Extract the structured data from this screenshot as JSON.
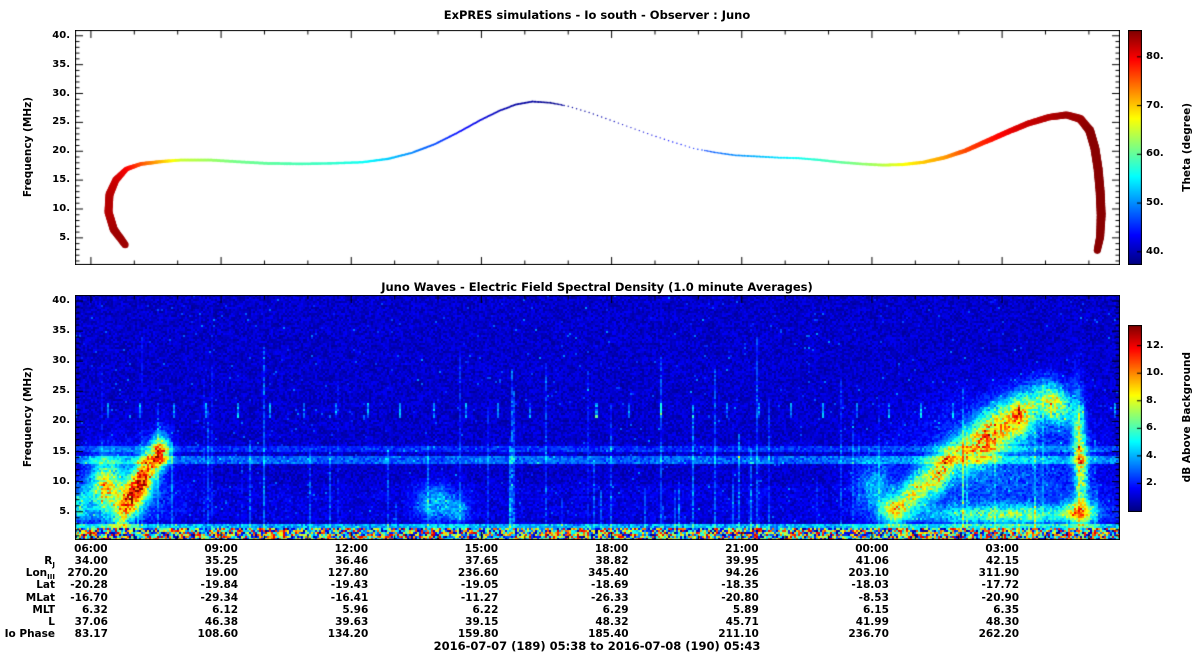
{
  "page": {
    "caption": "2016-07-07 (189) 05:38 to 2016-07-08 (190) 05:43"
  },
  "chart_data": [
    {
      "type": "line",
      "title": "ExPRES simulations - Io south - Observer : Juno",
      "ylabel": "Frequency (MHz)",
      "ylim": [
        0.3,
        41
      ],
      "yticks": [
        5,
        10,
        15,
        20,
        25,
        30,
        35,
        40
      ],
      "colorbar": {
        "label": "Theta (degree)",
        "ticks": [
          40,
          50,
          60,
          70,
          80
        ],
        "range": [
          37.5,
          85.5
        ]
      },
      "points": [
        [
          0.048,
          3.8,
          84,
          7
        ],
        [
          0.037,
          6.5,
          84,
          8
        ],
        [
          0.032,
          9.5,
          83,
          8
        ],
        [
          0.033,
          12.5,
          83,
          8
        ],
        [
          0.039,
          15.0,
          82,
          7
        ],
        [
          0.049,
          16.9,
          80,
          5
        ],
        [
          0.063,
          17.8,
          76,
          4
        ],
        [
          0.082,
          18.2,
          71,
          3.5
        ],
        [
          0.102,
          18.5,
          65,
          3
        ],
        [
          0.128,
          18.5,
          63,
          3
        ],
        [
          0.155,
          18.2,
          61,
          3
        ],
        [
          0.185,
          17.9,
          60,
          3
        ],
        [
          0.215,
          17.8,
          59,
          2.8
        ],
        [
          0.245,
          17.9,
          58,
          2.6
        ],
        [
          0.275,
          18.1,
          56,
          2.5
        ],
        [
          0.3,
          18.7,
          53,
          2.4
        ],
        [
          0.322,
          19.7,
          50,
          2.2
        ],
        [
          0.344,
          21.2,
          47,
          2.1
        ],
        [
          0.366,
          23.2,
          44,
          2
        ],
        [
          0.388,
          25.4,
          42,
          2
        ],
        [
          0.406,
          27.0,
          40,
          2
        ],
        [
          0.422,
          28.1,
          39,
          2
        ],
        [
          0.438,
          28.6,
          39,
          2
        ],
        [
          0.455,
          28.4,
          38,
          1.8
        ],
        [
          0.472,
          27.8,
          39,
          1.4
        ],
        [
          0.492,
          26.7,
          39,
          1.2
        ],
        [
          0.512,
          25.4,
          40,
          1.2
        ],
        [
          0.532,
          24.1,
          41,
          1.2
        ],
        [
          0.552,
          22.8,
          42,
          1.2
        ],
        [
          0.572,
          21.6,
          44,
          1.3
        ],
        [
          0.592,
          20.5,
          45,
          1.4
        ],
        [
          0.612,
          19.8,
          48,
          1.6
        ],
        [
          0.632,
          19.3,
          50,
          1.8
        ],
        [
          0.652,
          19.1,
          52,
          2
        ],
        [
          0.672,
          18.9,
          54,
          2
        ],
        [
          0.692,
          18.8,
          56,
          2.2
        ],
        [
          0.712,
          18.5,
          58,
          2.4
        ],
        [
          0.732,
          18.1,
          60,
          2.6
        ],
        [
          0.752,
          17.8,
          62,
          2.8
        ],
        [
          0.772,
          17.6,
          64,
          3
        ],
        [
          0.792,
          17.7,
          67,
          3.2
        ],
        [
          0.812,
          18.1,
          70,
          3.5
        ],
        [
          0.832,
          18.9,
          72,
          4
        ],
        [
          0.852,
          20.1,
          76,
          4.5
        ],
        [
          0.872,
          21.7,
          78,
          5
        ],
        [
          0.892,
          23.3,
          80,
          5.5
        ],
        [
          0.912,
          24.8,
          82,
          6
        ],
        [
          0.932,
          25.9,
          83,
          6.5
        ],
        [
          0.949,
          26.3,
          84,
          7
        ],
        [
          0.962,
          25.6,
          84,
          8
        ],
        [
          0.971,
          23.6,
          85,
          9
        ],
        [
          0.976,
          20.5,
          85,
          9
        ],
        [
          0.979,
          17.0,
          85,
          9
        ],
        [
          0.981,
          13.0,
          85,
          9
        ],
        [
          0.982,
          9.0,
          85,
          9
        ],
        [
          0.981,
          5.2,
          85,
          8
        ],
        [
          0.978,
          2.6,
          85,
          7
        ]
      ]
    },
    {
      "type": "heatmap",
      "title": "Juno Waves - Electric Field Spectral Density (1.0 minute Averages)",
      "ylabel": "Frequency (MHz)",
      "ylim": [
        0.3,
        41
      ],
      "yticks": [
        5,
        10,
        15,
        20,
        25,
        30,
        35,
        40
      ],
      "colorbar": {
        "label": "dB Above Background",
        "ticks": [
          2,
          4,
          6,
          8,
          10,
          12
        ],
        "range": [
          0,
          13.5
        ]
      },
      "xticks": {
        "labels": [
          "06:00",
          "09:00",
          "12:00",
          "15:00",
          "18:00",
          "21:00",
          "00:00",
          "03:00"
        ],
        "fracs": [
          0.0152,
          0.1398,
          0.2644,
          0.3889,
          0.5135,
          0.6381,
          0.7626,
          0.8872
        ]
      },
      "features": {
        "hbands": [
          {
            "f": 13.6,
            "hw": 0.7,
            "amp": 2.6
          },
          {
            "f": 15.6,
            "hw": 0.5,
            "amp": 1.6
          },
          {
            "f": 2.6,
            "hw": 0.3,
            "amp": 4.0
          }
        ],
        "dash_row": {
          "f0": 20.8,
          "f1": 23.0,
          "step": 0.0311
        },
        "vlines": {
          "count": 60,
          "seed": 11
        },
        "blobs": [
          {
            "x": 0.03,
            "f": 9.0,
            "rx": 0.016,
            "rf": 4.5,
            "amp": 8.0,
            "slant": 0
          },
          {
            "x": 0.052,
            "f": 7.0,
            "rx": 0.014,
            "rf": 3.5,
            "amp": 9.5,
            "slant": 280
          },
          {
            "x": 0.07,
            "f": 11.5,
            "rx": 0.013,
            "rf": 3.8,
            "amp": 9.0,
            "slant": 260
          },
          {
            "x": 0.083,
            "f": 15.0,
            "rx": 0.008,
            "rf": 2.4,
            "amp": 8.0,
            "slant": 0
          },
          {
            "x": 0.052,
            "f": 9.0,
            "rx": 0.04,
            "rf": 6.5,
            "amp": 2.8,
            "slant": 0
          },
          {
            "x": 0.005,
            "f": 6.0,
            "rx": 0.008,
            "rf": 3.0,
            "amp": 5.0,
            "slant": 0
          },
          {
            "x": 0.345,
            "f": 6.5,
            "rx": 0.018,
            "rf": 3.2,
            "amp": 4.2,
            "slant": 0
          },
          {
            "x": 0.368,
            "f": 5.2,
            "rx": 0.01,
            "rf": 2.2,
            "amp": 3.4,
            "slant": 0
          },
          {
            "x": 0.765,
            "f": 9.0,
            "rx": 0.018,
            "rf": 4.5,
            "amp": 3.6,
            "slant": 0
          },
          {
            "x": 0.885,
            "f": 13.0,
            "rx": 0.085,
            "rf": 9.5,
            "amp": 2.6,
            "slant": 0
          },
          {
            "x": 0.8,
            "f": 8.0,
            "rx": 0.02,
            "rf": 3.2,
            "amp": 7.5,
            "slant": 170
          },
          {
            "x": 0.83,
            "f": 12.0,
            "rx": 0.018,
            "rf": 3.2,
            "amp": 8.5,
            "slant": 190
          },
          {
            "x": 0.872,
            "f": 17.5,
            "rx": 0.022,
            "rf": 4.0,
            "amp": 10.0,
            "slant": 110
          },
          {
            "x": 0.905,
            "f": 21.0,
            "rx": 0.018,
            "rf": 3.6,
            "amp": 9.5,
            "slant": 80
          },
          {
            "x": 0.938,
            "f": 23.0,
            "rx": 0.015,
            "rf": 3.2,
            "amp": 8.5,
            "slant": -60
          },
          {
            "x": 0.962,
            "f": 14.0,
            "rx": 0.007,
            "rf": 9.0,
            "amp": 8.5,
            "slant": -500
          },
          {
            "x": 0.89,
            "f": 4.5,
            "rx": 0.075,
            "rf": 1.6,
            "amp": 6.5,
            "slant": 0
          },
          {
            "x": 0.96,
            "f": 5.0,
            "rx": 0.015,
            "rf": 2.0,
            "amp": 7.5,
            "slant": 0
          },
          {
            "x": 0.782,
            "f": 5.5,
            "rx": 0.012,
            "rf": 2.0,
            "amp": 5.5,
            "slant": 0
          }
        ]
      }
    }
  ],
  "ephemeris": {
    "rows": [
      {
        "label": {
          "main": "R",
          "sub": "J"
        },
        "values": [
          "34.00",
          "35.25",
          "36.46",
          "37.65",
          "38.82",
          "39.95",
          "41.06",
          "42.15"
        ]
      },
      {
        "label": {
          "main": "Lon",
          "sub": "III"
        },
        "values": [
          "270.20",
          "19.00",
          "127.80",
          "236.60",
          "345.40",
          "94.26",
          "203.10",
          "311.90"
        ]
      },
      {
        "label": {
          "main": "Lat"
        },
        "values": [
          "-20.28",
          "-19.84",
          "-19.43",
          "-19.05",
          "-18.69",
          "-18.35",
          "-18.03",
          "-17.72"
        ]
      },
      {
        "label": {
          "main": "MLat"
        },
        "values": [
          "-16.70",
          "-29.34",
          "-16.41",
          "-11.27",
          "-26.33",
          "-20.80",
          "-8.53",
          "-20.90"
        ]
      },
      {
        "label": {
          "main": "MLT"
        },
        "values": [
          "6.32",
          "6.12",
          "5.96",
          "6.22",
          "6.29",
          "5.89",
          "6.15",
          "6.35"
        ]
      },
      {
        "label": {
          "main": "L"
        },
        "values": [
          "37.06",
          "46.38",
          "39.63",
          "39.15",
          "48.32",
          "45.71",
          "41.99",
          "48.30"
        ]
      },
      {
        "label": {
          "main": "Io Phase"
        },
        "values": [
          "83.17",
          "108.60",
          "134.20",
          "159.80",
          "185.40",
          "211.10",
          "236.70",
          "262.20"
        ]
      }
    ]
  }
}
